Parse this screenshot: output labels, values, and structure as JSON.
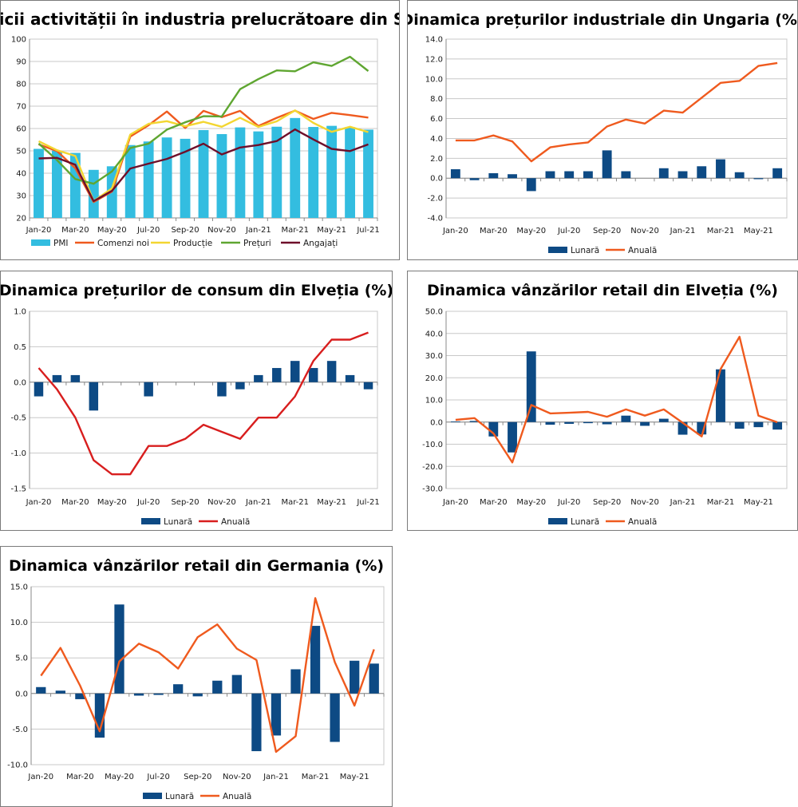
{
  "colors": {
    "pmi": "#33bde0",
    "comenzi": "#ef5a1e",
    "productie": "#f3d631",
    "preturi": "#5fa631",
    "angajati": "#6e0f2a",
    "lunara": "#0d4a84",
    "anuala_orange": "#ef5a1e",
    "anuala_red": "#d81e1e",
    "grid": "#c8c8c8",
    "axis": "#888888"
  },
  "chart_data": [
    {
      "id": "sua",
      "type": "bar+line",
      "title": "Indicii activității în industria prelucrătoare din SUA",
      "categories": [
        "Jan-20",
        "Feb-20",
        "Mar-20",
        "Apr-20",
        "May-20",
        "Jun-20",
        "Jul-20",
        "Aug-20",
        "Sep-20",
        "Oct-20",
        "Nov-20",
        "Dec-20",
        "Jan-21",
        "Feb-21",
        "Mar-21",
        "Apr-21",
        "May-21",
        "Jun-21",
        "Jul-21"
      ],
      "tick_labels": [
        "Jan-20",
        "Mar-20",
        "May-20",
        "Jul-20",
        "Sep-20",
        "Nov-20",
        "Jan-21",
        "Mar-21",
        "May-21",
        "Jul-21"
      ],
      "ylim": [
        20,
        100
      ],
      "yticks": [
        20,
        30,
        40,
        50,
        60,
        70,
        80,
        90,
        100
      ],
      "ytick_labels": [
        "20",
        "30",
        "40",
        "50",
        "60",
        "70",
        "80",
        "90",
        "100"
      ],
      "bars": [
        {
          "name": "PMI",
          "color": "#33bde0",
          "values": [
            50.9,
            50.1,
            49.1,
            41.5,
            43.1,
            52.6,
            54.2,
            56.0,
            55.4,
            59.3,
            57.5,
            60.5,
            58.7,
            60.8,
            64.7,
            60.7,
            61.2,
            60.6,
            59.5
          ]
        }
      ],
      "lines": [
        {
          "name": "Comenzi noi",
          "color": "#ef5a1e",
          "values": [
            52.9,
            49.9,
            42.2,
            27.1,
            31.8,
            56.4,
            61.5,
            67.6,
            60.2,
            67.9,
            65.1,
            67.9,
            61.1,
            64.8,
            68.0,
            64.3,
            67.0,
            66.0,
            64.9
          ]
        },
        {
          "name": "Producție",
          "color": "#f3d631",
          "values": [
            54.3,
            50.3,
            47.7,
            27.5,
            33.2,
            57.3,
            62.1,
            63.3,
            61.0,
            63.0,
            60.8,
            64.8,
            60.7,
            63.2,
            68.1,
            62.5,
            58.5,
            60.8,
            58.4
          ]
        },
        {
          "name": "Prețuri",
          "color": "#5fa631",
          "values": [
            53.3,
            45.9,
            37.4,
            35.3,
            40.8,
            51.3,
            53.2,
            59.5,
            62.8,
            65.5,
            65.4,
            77.6,
            82.1,
            86.0,
            85.6,
            89.6,
            88.0,
            92.1,
            85.7
          ]
        },
        {
          "name": "Angajați",
          "color": "#6e0f2a",
          "values": [
            46.6,
            46.9,
            43.8,
            27.5,
            32.1,
            42.1,
            44.3,
            46.4,
            49.6,
            53.2,
            48.4,
            51.5,
            52.6,
            54.4,
            59.6,
            55.1,
            50.9,
            49.9,
            52.9
          ]
        }
      ],
      "legend": [
        "PMI",
        "Comenzi noi",
        "Producție",
        "Prețuri",
        "Angajați"
      ]
    },
    {
      "id": "ungaria",
      "type": "bar+line",
      "title": "Dinamica prețurilor industriale din Ungaria (%)",
      "categories": [
        "Jan-20",
        "Feb-20",
        "Mar-20",
        "Apr-20",
        "May-20",
        "Jun-20",
        "Jul-20",
        "Aug-20",
        "Sep-20",
        "Oct-20",
        "Nov-20",
        "Dec-20",
        "Jan-21",
        "Feb-21",
        "Mar-21",
        "Apr-21",
        "May-21",
        "Jun-21"
      ],
      "tick_labels": [
        "Jan-20",
        "Mar-20",
        "May-20",
        "Jul-20",
        "Sep-20",
        "Nov-20",
        "Jan-21",
        "Mar-21",
        "May-21"
      ],
      "ylim": [
        -4,
        14
      ],
      "yticks": [
        -4,
        -2,
        0,
        2,
        4,
        6,
        8,
        10,
        12,
        14
      ],
      "ytick_labels": [
        "-4.0",
        "-2.0",
        "0.0",
        "2.0",
        "4.0",
        "6.0",
        "8.0",
        "10.0",
        "12.0",
        "14.0"
      ],
      "bars": [
        {
          "name": "Lunară",
          "color": "#0d4a84",
          "values": [
            0.9,
            -0.2,
            0.5,
            0.4,
            -1.3,
            0.7,
            0.7,
            0.7,
            2.8,
            0.7,
            0.0,
            1.0,
            0.7,
            1.2,
            1.9,
            0.6,
            -0.1,
            1.0
          ]
        }
      ],
      "lines": [
        {
          "name": "Anuală",
          "color": "#ef5a1e",
          "values": [
            3.8,
            3.8,
            4.3,
            3.7,
            1.7,
            3.1,
            3.4,
            3.6,
            5.2,
            5.9,
            5.5,
            6.8,
            6.6,
            8.1,
            9.6,
            9.8,
            11.3,
            11.6
          ]
        }
      ],
      "legend": [
        "Lunară",
        "Anuală"
      ]
    },
    {
      "id": "elvetia_cpi",
      "type": "bar+line",
      "title": "Dinamica prețurilor de consum din Elveția (%)",
      "categories": [
        "Jan-20",
        "Feb-20",
        "Mar-20",
        "Apr-20",
        "May-20",
        "Jun-20",
        "Jul-20",
        "Aug-20",
        "Sep-20",
        "Oct-20",
        "Nov-20",
        "Dec-20",
        "Jan-21",
        "Feb-21",
        "Mar-21",
        "Apr-21",
        "May-21",
        "Jun-21",
        "Jul-21"
      ],
      "tick_labels": [
        "Jan-20",
        "Mar-20",
        "May-20",
        "Jul-20",
        "Sep-20",
        "Nov-20",
        "Jan-21",
        "Mar-21",
        "May-21",
        "Jul-21"
      ],
      "ylim": [
        -1.5,
        1
      ],
      "yticks": [
        -1.5,
        -1,
        -0.5,
        0,
        0.5,
        1
      ],
      "ytick_labels": [
        "-1.5",
        "-1.0",
        "-0.5",
        "0.0",
        "0.5",
        "1.0"
      ],
      "bars": [
        {
          "name": "Lunară",
          "color": "#0d4a84",
          "values": [
            -0.2,
            0.1,
            0.1,
            -0.4,
            0.0,
            0.0,
            -0.2,
            0.0,
            0.0,
            0.0,
            -0.2,
            -0.1,
            0.1,
            0.2,
            0.3,
            0.2,
            0.3,
            0.1,
            -0.1
          ]
        }
      ],
      "lines": [
        {
          "name": "Anuală",
          "color": "#d81e1e",
          "values": [
            0.2,
            -0.1,
            -0.5,
            -1.1,
            -1.3,
            -1.3,
            -0.9,
            -0.9,
            -0.8,
            -0.6,
            -0.7,
            -0.8,
            -0.5,
            -0.5,
            -0.2,
            0.3,
            0.6,
            0.6,
            0.7
          ]
        }
      ],
      "legend": [
        "Lunară",
        "Anuală"
      ]
    },
    {
      "id": "elvetia_retail",
      "type": "bar+line",
      "title": "Dinamica vânzărilor retail din Elveția (%)",
      "categories": [
        "Jan-20",
        "Feb-20",
        "Mar-20",
        "Apr-20",
        "May-20",
        "Jun-20",
        "Jul-20",
        "Aug-20",
        "Sep-20",
        "Oct-20",
        "Nov-20",
        "Dec-20",
        "Jan-21",
        "Feb-21",
        "Mar-21",
        "Apr-21",
        "May-21",
        "Jun-21"
      ],
      "tick_labels": [
        "Jan-20",
        "Mar-20",
        "May-20",
        "Jul-20",
        "Sep-20",
        "Nov-20",
        "Jan-21",
        "Mar-21",
        "May-21"
      ],
      "ylim": [
        -30,
        50
      ],
      "yticks": [
        -30,
        -20,
        -10,
        0,
        10,
        20,
        30,
        40,
        50
      ],
      "ytick_labels": [
        "-30.0",
        "-20.0",
        "-10.0",
        "0.0",
        "10.0",
        "20.0",
        "30.0",
        "40.0",
        "50.0"
      ],
      "bars": [
        {
          "name": "Lunară",
          "color": "#0d4a84",
          "values": [
            0.3,
            0.5,
            -6.5,
            -13.7,
            31.9,
            -1.2,
            -0.8,
            -0.5,
            -1.0,
            2.9,
            -1.7,
            1.5,
            -5.7,
            -5.6,
            23.8,
            -3.0,
            -2.3,
            -3.4
          ]
        }
      ],
      "lines": [
        {
          "name": "Anuală",
          "color": "#ef5a1e",
          "values": [
            1.0,
            1.8,
            -5.1,
            -18.2,
            7.7,
            3.9,
            4.2,
            4.6,
            2.4,
            5.7,
            2.9,
            5.7,
            -0.3,
            -6.5,
            23.9,
            38.5,
            2.9,
            -0.1
          ]
        }
      ],
      "legend": [
        "Lunară",
        "Anuală"
      ]
    },
    {
      "id": "germania",
      "type": "bar+line",
      "title": "Dinamica vânzărilor retail din Germania (%)",
      "categories": [
        "Jan-20",
        "Feb-20",
        "Mar-20",
        "Apr-20",
        "May-20",
        "Jun-20",
        "Jul-20",
        "Aug-20",
        "Sep-20",
        "Oct-20",
        "Nov-20",
        "Dec-20",
        "Jan-21",
        "Feb-21",
        "Mar-21",
        "Apr-21",
        "May-21",
        "Jun-21"
      ],
      "tick_labels": [
        "Jan-20",
        "Mar-20",
        "May-20",
        "Jul-20",
        "Sep-20",
        "Nov-20",
        "Jan-21",
        "Mar-21",
        "May-21"
      ],
      "ylim": [
        -10,
        15
      ],
      "yticks": [
        -10,
        -5,
        0,
        5,
        10,
        15
      ],
      "ytick_labels": [
        "-10.0",
        "-5.0",
        "0.0",
        "5.0",
        "10.0",
        "15.0"
      ],
      "bars": [
        {
          "name": "Lunară",
          "color": "#0d4a84",
          "values": [
            0.9,
            0.4,
            -0.8,
            -6.2,
            12.5,
            -0.3,
            -0.2,
            1.3,
            -0.4,
            1.8,
            2.6,
            -8.1,
            -5.9,
            3.4,
            9.5,
            -6.8,
            4.6,
            4.2
          ]
        }
      ],
      "lines": [
        {
          "name": "Anuală",
          "color": "#ef5a1e",
          "values": [
            2.5,
            6.4,
            1.1,
            -5.3,
            4.5,
            7.0,
            5.8,
            3.5,
            7.9,
            9.7,
            6.3,
            4.7,
            -8.2,
            -6.0,
            13.4,
            4.4,
            -1.7,
            6.2
          ]
        }
      ],
      "legend": [
        "Lunară",
        "Anuală"
      ]
    }
  ]
}
